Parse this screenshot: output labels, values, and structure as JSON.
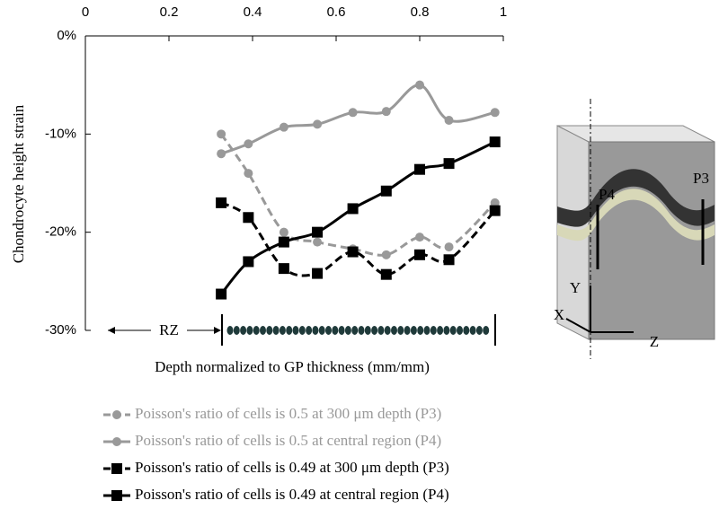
{
  "chart_data": {
    "type": "line",
    "y_label": "Chondrocyte height strain",
    "x_label": "Depth normalized to GP thickness (mm/mm)",
    "annotations": [
      "RZ"
    ],
    "diagram_labels": [
      "P4",
      "P3",
      "Y",
      "X",
      "Z"
    ],
    "x": [
      0.325,
      0.39,
      0.475,
      0.555,
      0.64,
      0.72,
      0.8,
      0.87,
      0.98
    ],
    "xlim": [
      0,
      1
    ],
    "xticks": [
      0,
      0.2,
      0.4,
      0.6,
      0.8,
      1
    ],
    "ylim": [
      -30,
      0
    ],
    "yticks": [
      {
        "value": 0,
        "label": "0%"
      },
      {
        "value": -10,
        "label": "-10%"
      },
      {
        "value": -20,
        "label": "-20%"
      },
      {
        "value": -30,
        "label": "-30%"
      }
    ],
    "series": [
      {
        "name": "Poisson's ratio of cells is 0.5 at 300 μm depth (P3)",
        "color": "#999999",
        "dashed": true,
        "marker": "circle",
        "values": [
          -10,
          -14,
          -20,
          -21,
          -21.7,
          -22.3,
          -20.5,
          -21.5,
          -17
        ]
      },
      {
        "name": "Poisson's ratio of cells is 0.5 at central region (P4)",
        "color": "#999999",
        "dashed": false,
        "marker": "circle",
        "values": [
          -12,
          -11,
          -9.3,
          -9,
          -7.8,
          -7.7,
          -5,
          -8.6,
          -7.8
        ]
      },
      {
        "name": "Poisson's ratio of cells is 0.49 at 300 μm depth (P3)",
        "color": "#000000",
        "dashed": true,
        "marker": "square",
        "values": [
          -17,
          -18.5,
          -23.7,
          -24.2,
          -22,
          -24.3,
          -22.3,
          -22.8,
          -17.8
        ]
      },
      {
        "name": "Poisson's ratio of cells is 0.49 at central region (P4)",
        "color": "#000000",
        "dashed": false,
        "marker": "square",
        "values": [
          -26.3,
          -23,
          -21,
          -20,
          -17.6,
          -15.8,
          -13.6,
          -13,
          -10.8
        ]
      }
    ]
  }
}
